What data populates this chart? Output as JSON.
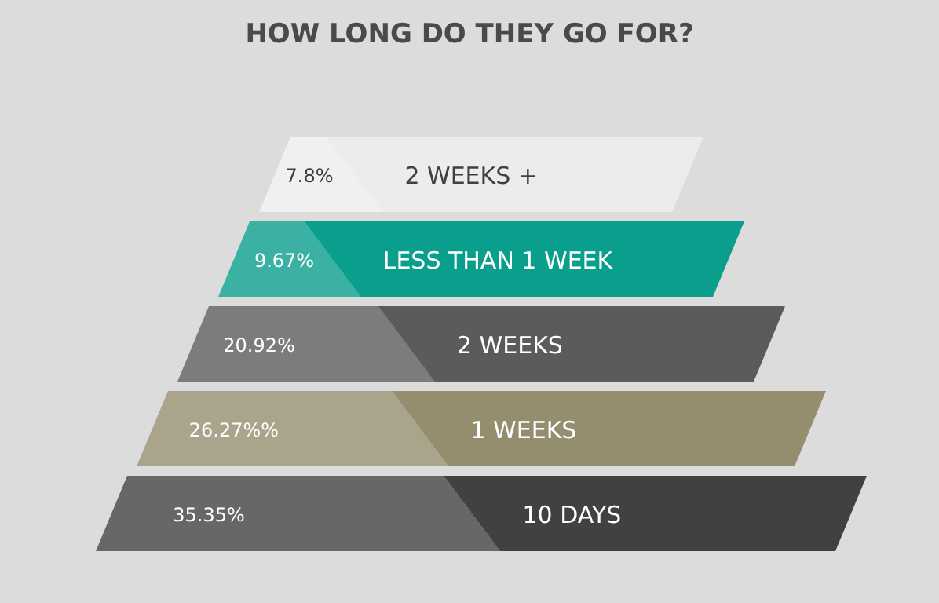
{
  "chart_data": {
    "type": "other",
    "title": "HOW LONG DO THEY GO FOR?",
    "categories": [
      "2 WEEKS +",
      "LESS THAN 1 WEEK",
      "2 WEEKS",
      "1 WEEKS",
      "10 DAYS"
    ],
    "values": [
      7.8,
      9.67,
      20.92,
      26.27,
      35.35
    ],
    "value_labels": [
      "7.8%",
      "9.67%",
      "20.92%",
      "26.27%%",
      "35.35%"
    ],
    "colors": [
      "#ececec",
      "#0a9e8c",
      "#5b5b5d",
      "#948d6e",
      "#414141"
    ]
  }
}
